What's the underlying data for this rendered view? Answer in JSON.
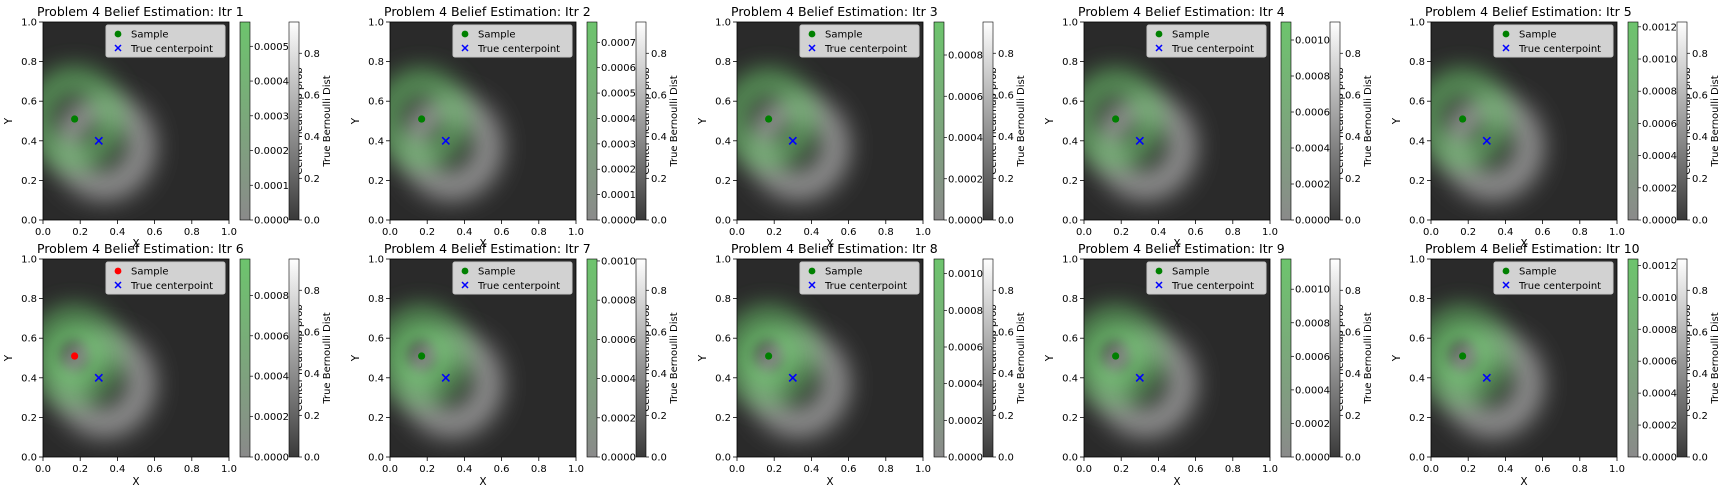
{
  "chart_data": {
    "type": "heatmap",
    "layout": {
      "rows": 2,
      "cols": 5
    },
    "common": {
      "xlabel": "X",
      "ylabel": "Y",
      "xlim": [
        0,
        1
      ],
      "ylim": [
        0,
        1
      ],
      "x_ticks": [
        "0.0",
        "0.2",
        "0.4",
        "0.6",
        "0.8",
        "1.0"
      ],
      "y_ticks": [
        "0.0",
        "0.2",
        "0.4",
        "0.6",
        "0.8",
        "1.0"
      ],
      "legend_position": "top-right",
      "legend_entries": [
        "Sample",
        "True centerpoint"
      ],
      "true_centerpoint": {
        "x": 0.3,
        "y": 0.4,
        "marker": "x",
        "color": "#0000ff"
      },
      "colorbar1_label": "Center heatmap prob",
      "colorbar2_label": "True Bernoulli Dist",
      "colorbar2_ticks": [
        "0.0",
        "0.2",
        "0.4",
        "0.6",
        "0.8"
      ],
      "colorbar2_max": 0.95,
      "colors": {
        "heat": "#6dc46d",
        "bernoulli": "#ffffff",
        "background": "#2a2a2a"
      }
    },
    "panels": [
      {
        "title": "Problem 4 Belief Estimation: Itr 1",
        "sample": {
          "x": 0.17,
          "y": 0.51,
          "color": "#008000"
        },
        "show_xlabel": false,
        "cb1_max": 0.00057,
        "cb1_ticks": [
          "0.0000",
          "0.0001",
          "0.0002",
          "0.0003",
          "0.0004",
          "0.0005"
        ],
        "rings": [
          0.2
        ]
      },
      {
        "title": "Problem 4 Belief Estimation: Itr 2",
        "sample": {
          "x": 0.17,
          "y": 0.51,
          "color": "#008000"
        },
        "show_xlabel": false,
        "cb1_max": 0.00078,
        "cb1_ticks": [
          "0.0000",
          "0.0001",
          "0.0002",
          "0.0003",
          "0.0004",
          "0.0005",
          "0.0006",
          "0.0007"
        ],
        "rings": [
          0.19
        ]
      },
      {
        "title": "Problem 4 Belief Estimation: Itr 3",
        "sample": {
          "x": 0.17,
          "y": 0.51,
          "color": "#008000"
        },
        "show_xlabel": false,
        "cb1_max": 0.00096,
        "cb1_ticks": [
          "0.0000",
          "0.0002",
          "0.0004",
          "0.0006",
          "0.0008"
        ],
        "rings": [
          0.19
        ]
      },
      {
        "title": "Problem 4 Belief Estimation: Itr 4",
        "sample": {
          "x": 0.17,
          "y": 0.51,
          "color": "#008000"
        },
        "show_xlabel": false,
        "cb1_max": 0.0011,
        "cb1_ticks": [
          "0.0000",
          "0.0002",
          "0.0004",
          "0.0006",
          "0.0008",
          "0.0010"
        ],
        "rings": [
          0.19
        ]
      },
      {
        "title": "Problem 4 Belief Estimation: Itr 5",
        "sample": {
          "x": 0.17,
          "y": 0.51,
          "color": "#008000"
        },
        "show_xlabel": false,
        "cb1_max": 0.00123,
        "cb1_ticks": [
          "0.0000",
          "0.0002",
          "0.0004",
          "0.0006",
          "0.0008",
          "0.0010",
          "0.0012"
        ],
        "rings": [
          0.19
        ]
      },
      {
        "title": "Problem 4 Belief Estimation: Itr 6",
        "sample": {
          "x": 0.17,
          "y": 0.51,
          "color": "#ff0000"
        },
        "show_xlabel": true,
        "cb1_max": 0.00098,
        "cb1_ticks": [
          "0.0000",
          "0.0002",
          "0.0004",
          "0.0006",
          "0.0008"
        ],
        "rings": [
          0.19,
          0.12
        ]
      },
      {
        "title": "Problem 4 Belief Estimation: Itr 7",
        "sample": {
          "x": 0.17,
          "y": 0.51,
          "color": "#008000"
        },
        "show_xlabel": true,
        "cb1_max": 0.00101,
        "cb1_ticks": [
          "0.0000",
          "0.0002",
          "0.0004",
          "0.0006",
          "0.0008",
          "0.0010"
        ],
        "rings": [
          0.19,
          0.12
        ]
      },
      {
        "title": "Problem 4 Belief Estimation: Itr 8",
        "sample": {
          "x": 0.17,
          "y": 0.51,
          "color": "#008000"
        },
        "show_xlabel": true,
        "cb1_max": 0.00108,
        "cb1_ticks": [
          "0.0000",
          "0.0002",
          "0.0004",
          "0.0006",
          "0.0008",
          "0.0010"
        ],
        "rings": [
          0.19,
          0.12
        ]
      },
      {
        "title": "Problem 4 Belief Estimation: Itr 9",
        "sample": {
          "x": 0.17,
          "y": 0.51,
          "color": "#008000"
        },
        "show_xlabel": true,
        "cb1_max": 0.00118,
        "cb1_ticks": [
          "0.0000",
          "0.0002",
          "0.0004",
          "0.0006",
          "0.0008",
          "0.0010"
        ],
        "rings": [
          0.19,
          0.12
        ]
      },
      {
        "title": "Problem 4 Belief Estimation: Itr 10",
        "sample": {
          "x": 0.17,
          "y": 0.51,
          "color": "#008000"
        },
        "show_xlabel": true,
        "cb1_max": 0.00124,
        "cb1_ticks": [
          "0.0000",
          "0.0002",
          "0.0004",
          "0.0006",
          "0.0008",
          "0.0010",
          "0.0012"
        ],
        "rings": [
          0.19,
          0.12
        ]
      }
    ]
  }
}
